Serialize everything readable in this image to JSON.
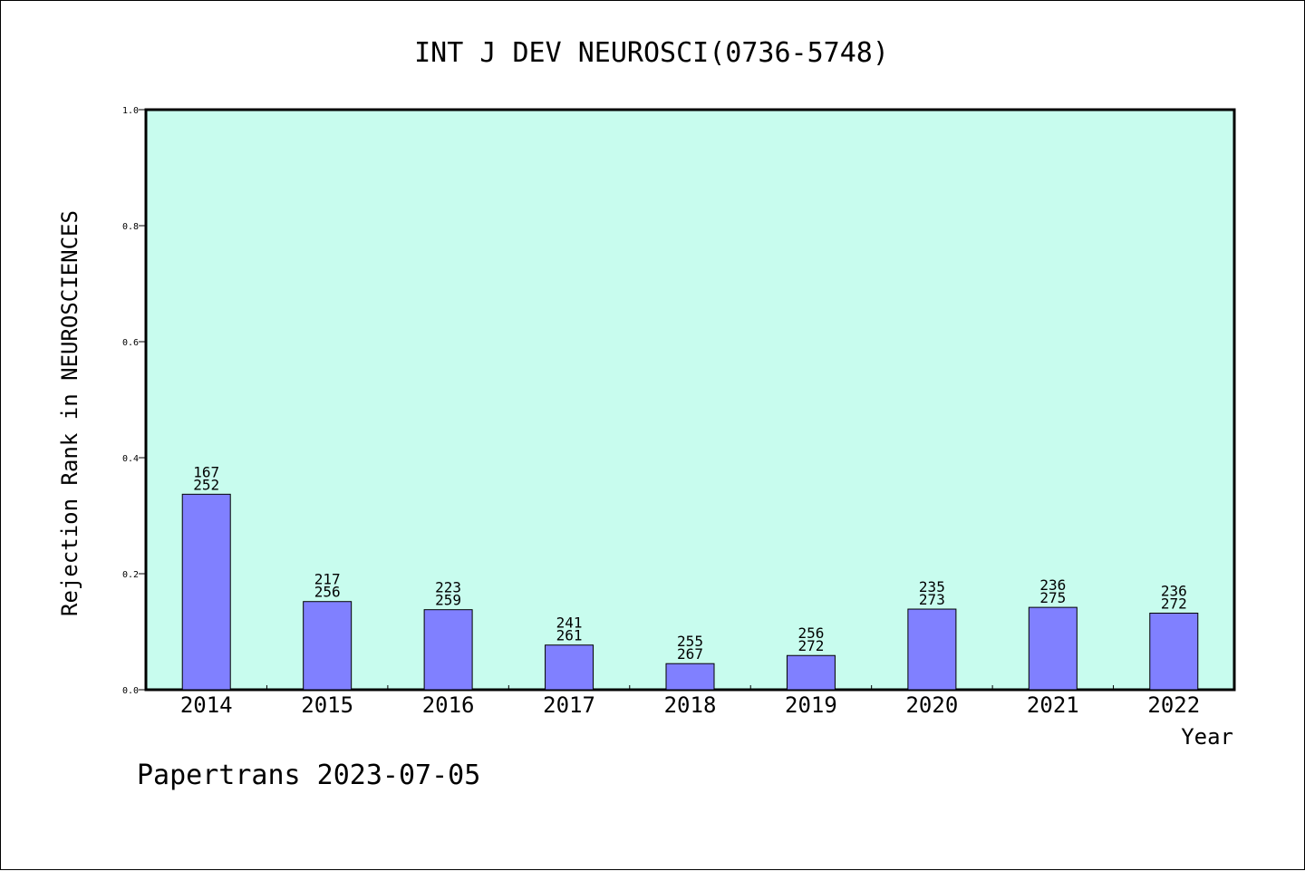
{
  "chart_data": {
    "type": "bar",
    "title": "INT J DEV NEUROSCI(0736-5748)",
    "xlabel": "Year",
    "ylabel": "Rejection Rank in NEUROSCIENCES",
    "ylim": [
      0,
      1.0
    ],
    "yticks": [
      "0.0",
      "0.2",
      "0.4",
      "0.6",
      "0.8",
      "1.0"
    ],
    "categories": [
      "2014",
      "2015",
      "2016",
      "2017",
      "2018",
      "2019",
      "2020",
      "2021",
      "2022"
    ],
    "values": [
      0.337,
      0.152,
      0.138,
      0.077,
      0.045,
      0.059,
      0.139,
      0.142,
      0.132
    ],
    "rank_labels": [
      "167",
      "217",
      "223",
      "241",
      "255",
      "256",
      "235",
      "236",
      "236"
    ],
    "total_labels": [
      "252",
      "256",
      "259",
      "261",
      "267",
      "272",
      "273",
      "275",
      "272"
    ],
    "grid": false,
    "colors": {
      "plot_bg": "#c8fcee",
      "bar": "#8080ff"
    }
  },
  "footer": {
    "watermark": "Papertrans 2023-07-05"
  }
}
